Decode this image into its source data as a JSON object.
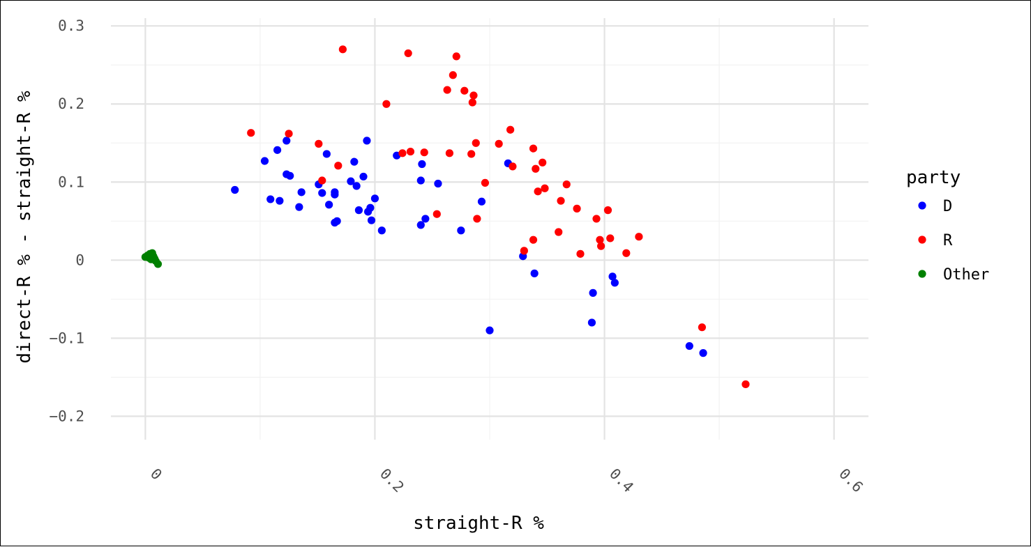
{
  "chart_data": {
    "type": "scatter",
    "xlabel": "straight-R %",
    "ylabel": "direct-R % - straight-R %",
    "xlim": [
      -0.03,
      0.63
    ],
    "ylim": [
      -0.23,
      0.31
    ],
    "x_ticks": [
      0,
      0.2,
      0.4,
      0.6
    ],
    "x_tick_labels": [
      "0",
      "0.2",
      "0.4",
      "0.6"
    ],
    "y_ticks": [
      -0.2,
      -0.1,
      0,
      0.1,
      0.2,
      0.3
    ],
    "y_tick_labels": [
      "−0.2",
      "−0.1",
      "0",
      "0.1",
      "0.2",
      "0.3"
    ],
    "grid": true,
    "legend": {
      "title": "party",
      "placement": "right",
      "entries": [
        {
          "label": "D",
          "color": "#0000ff"
        },
        {
          "label": "R",
          "color": "#ff0000"
        },
        {
          "label": "Other",
          "color": "#008000"
        }
      ]
    },
    "series": [
      {
        "name": "D",
        "color": "#0000ff",
        "points": [
          [
            0.078,
            0.09
          ],
          [
            0.104,
            0.127
          ],
          [
            0.109,
            0.078
          ],
          [
            0.115,
            0.141
          ],
          [
            0.117,
            0.076
          ],
          [
            0.123,
            0.153
          ],
          [
            0.123,
            0.11
          ],
          [
            0.126,
            0.108
          ],
          [
            0.134,
            0.068
          ],
          [
            0.136,
            0.087
          ],
          [
            0.151,
            0.097
          ],
          [
            0.154,
            0.086
          ],
          [
            0.158,
            0.136
          ],
          [
            0.16,
            0.071
          ],
          [
            0.165,
            0.084
          ],
          [
            0.165,
            0.087
          ],
          [
            0.165,
            0.048
          ],
          [
            0.167,
            0.05
          ],
          [
            0.179,
            0.101
          ],
          [
            0.182,
            0.126
          ],
          [
            0.184,
            0.095
          ],
          [
            0.186,
            0.064
          ],
          [
            0.19,
            0.107
          ],
          [
            0.193,
            0.153
          ],
          [
            0.194,
            0.062
          ],
          [
            0.196,
            0.067
          ],
          [
            0.197,
            0.051
          ],
          [
            0.2,
            0.079
          ],
          [
            0.206,
            0.038
          ],
          [
            0.219,
            0.134
          ],
          [
            0.24,
            0.102
          ],
          [
            0.24,
            0.045
          ],
          [
            0.241,
            0.123
          ],
          [
            0.244,
            0.053
          ],
          [
            0.255,
            0.098
          ],
          [
            0.275,
            0.038
          ],
          [
            0.293,
            0.075
          ],
          [
            0.3,
            -0.09
          ],
          [
            0.316,
            0.124
          ],
          [
            0.329,
            0.005
          ],
          [
            0.339,
            -0.017
          ],
          [
            0.389,
            -0.08
          ],
          [
            0.39,
            -0.042
          ],
          [
            0.407,
            -0.021
          ],
          [
            0.409,
            -0.029
          ],
          [
            0.474,
            -0.11
          ],
          [
            0.486,
            -0.119
          ]
        ]
      },
      {
        "name": "R",
        "color": "#ff0000",
        "points": [
          [
            0.092,
            0.163
          ],
          [
            0.125,
            0.162
          ],
          [
            0.151,
            0.149
          ],
          [
            0.154,
            0.102
          ],
          [
            0.168,
            0.121
          ],
          [
            0.172,
            0.27
          ],
          [
            0.21,
            0.2
          ],
          [
            0.224,
            0.137
          ],
          [
            0.229,
            0.265
          ],
          [
            0.231,
            0.139
          ],
          [
            0.243,
            0.138
          ],
          [
            0.254,
            0.059
          ],
          [
            0.263,
            0.218
          ],
          [
            0.265,
            0.137
          ],
          [
            0.268,
            0.237
          ],
          [
            0.271,
            0.261
          ],
          [
            0.278,
            0.217
          ],
          [
            0.284,
            0.136
          ],
          [
            0.285,
            0.202
          ],
          [
            0.286,
            0.211
          ],
          [
            0.288,
            0.15
          ],
          [
            0.289,
            0.053
          ],
          [
            0.296,
            0.099
          ],
          [
            0.308,
            0.149
          ],
          [
            0.318,
            0.167
          ],
          [
            0.32,
            0.12
          ],
          [
            0.33,
            0.012
          ],
          [
            0.338,
            0.143
          ],
          [
            0.338,
            0.026
          ],
          [
            0.34,
            0.117
          ],
          [
            0.342,
            0.088
          ],
          [
            0.346,
            0.125
          ],
          [
            0.348,
            0.092
          ],
          [
            0.36,
            0.036
          ],
          [
            0.362,
            0.076
          ],
          [
            0.367,
            0.097
          ],
          [
            0.376,
            0.066
          ],
          [
            0.379,
            0.008
          ],
          [
            0.393,
            0.053
          ],
          [
            0.396,
            0.026
          ],
          [
            0.397,
            0.018
          ],
          [
            0.403,
            0.064
          ],
          [
            0.405,
            0.028
          ],
          [
            0.419,
            0.009
          ],
          [
            0.43,
            0.03
          ],
          [
            0.485,
            -0.086
          ],
          [
            0.523,
            -0.159
          ]
        ]
      },
      {
        "name": "Other",
        "color": "#008000",
        "points": [
          [
            0.0,
            0.004
          ],
          [
            0.002,
            0.006
          ],
          [
            0.003,
            0.003
          ],
          [
            0.004,
            0.008
          ],
          [
            0.005,
            0.001
          ],
          [
            0.006,
            0.009
          ],
          [
            0.007,
            0.005
          ],
          [
            0.008,
            0.002
          ],
          [
            0.009,
            -0.001
          ],
          [
            0.011,
            -0.005
          ]
        ]
      }
    ]
  }
}
